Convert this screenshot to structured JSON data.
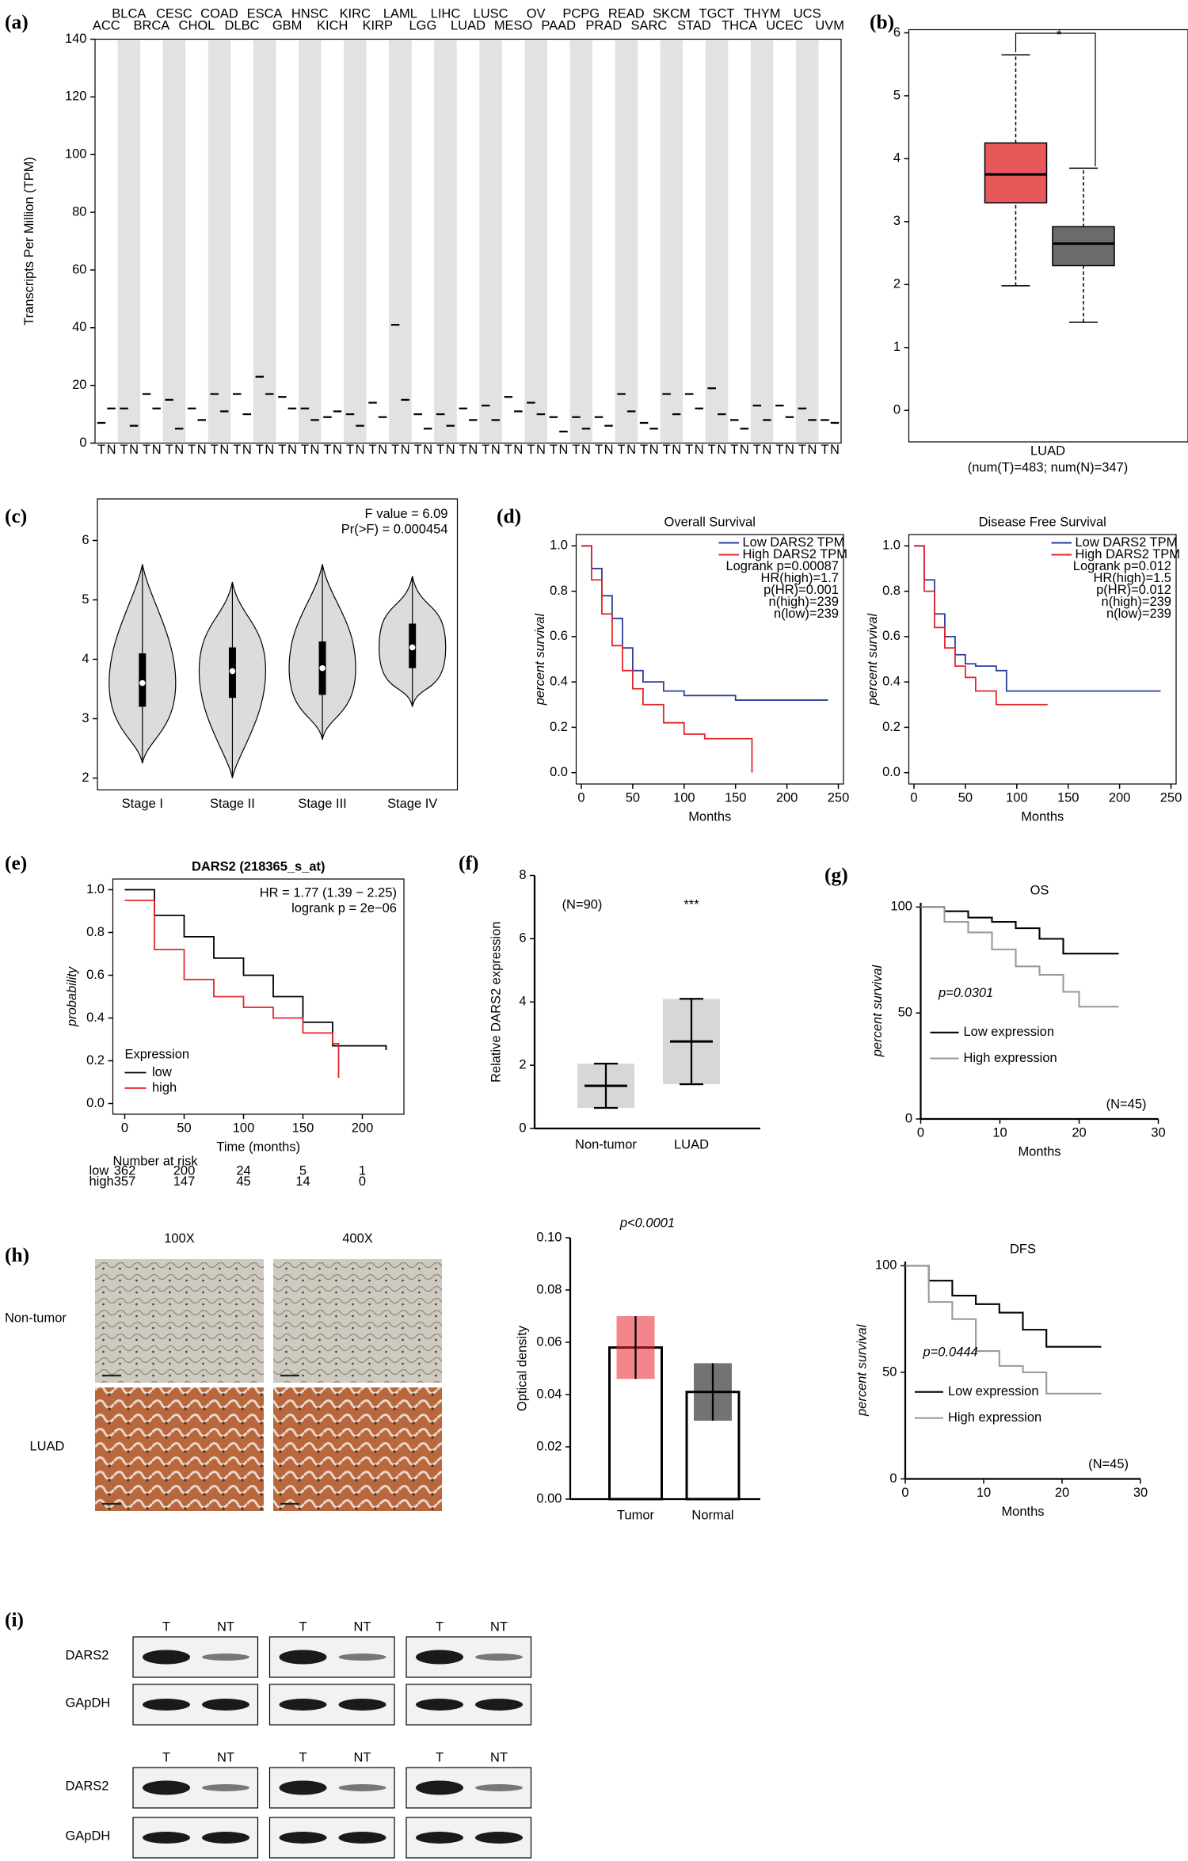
{
  "panel_labels": [
    "(a)",
    "(b)",
    "(c)",
    "(d)",
    "(e)",
    "(f)",
    "(g)",
    "(h)",
    "(i)"
  ],
  "chart_data": [
    {
      "type": "dot",
      "ylabel": "Transcripts Per Million (TPM)",
      "categories": [
        "ACC",
        "BLCA",
        "BRCA",
        "CESC",
        "CHOL",
        "COAD",
        "DLBC",
        "ESCA",
        "GBM",
        "HNSC",
        "KICH",
        "KIRC",
        "KIRP",
        "LAML",
        "LGG",
        "LIHC",
        "LUAD",
        "LUSC",
        "MESO",
        "OV",
        "PAAD",
        "PCPG",
        "PRAD",
        "READ",
        "SARC",
        "SKCM",
        "STAD",
        "TGCT",
        "THCA",
        "THYM",
        "UCEC",
        "UCS",
        "UVM"
      ],
      "category_colors": [
        "#000000",
        "#000000",
        "#e8474a",
        "#e8474a",
        "#000000",
        "#e8474a",
        "#e8474a",
        "#e8474a",
        "#e8474a",
        "#000000",
        "#000000",
        "#000000",
        "#000000",
        "#2e9e3e",
        "#e8474a",
        "#e8474a",
        "#e8474a",
        "#e8474a",
        "#000000",
        "#e8474a",
        "#e8474a",
        "#000000",
        "#000000",
        "#e8474a",
        "#000000",
        "#e8474a",
        "#e8474a",
        "#e8474a",
        "#000000",
        "#e8474a",
        "#e8474a",
        "#e8474a",
        "#000000"
      ],
      "series": [
        {
          "name": "T",
          "color": "#000000",
          "values": [
            7,
            12,
            17,
            15,
            12,
            17,
            17,
            23,
            16,
            12,
            9,
            10,
            14,
            41,
            10,
            10,
            12,
            13,
            16,
            14,
            9,
            9,
            9,
            17,
            7,
            17,
            17,
            19,
            8,
            13,
            13,
            12,
            8
          ]
        },
        {
          "name": "N",
          "color": "#000000",
          "values": [
            12,
            6,
            12,
            5,
            8,
            11,
            10,
            17,
            12,
            8,
            11,
            6,
            9,
            15,
            5,
            6,
            8,
            8,
            11,
            10,
            4,
            5,
            6,
            11,
            5,
            10,
            12,
            10,
            5,
            8,
            9,
            8,
            7
          ]
        }
      ],
      "ylim": [
        0,
        140
      ],
      "yticks": [
        0,
        20,
        40,
        60,
        80,
        100,
        120,
        140
      ]
    },
    {
      "type": "box",
      "xlabel": "LUAD",
      "subtitle": "(num(T)=483; num(N)=347)",
      "annotation": "*",
      "series": [
        {
          "color": "#e8575a",
          "whisker_low": 1.98,
          "q1": 3.3,
          "median": 3.75,
          "q3": 4.25,
          "whisker_high": 5.65
        },
        {
          "color": "#6b6b6b",
          "whisker_low": 1.4,
          "q1": 2.3,
          "median": 2.65,
          "q3": 2.92,
          "whisker_high": 3.85
        }
      ],
      "ylim": [
        -0.5,
        6.05
      ],
      "yticks": [
        0,
        1,
        2,
        3,
        4,
        5,
        6
      ]
    },
    {
      "type": "violin",
      "annotations": [
        "F value = 6.09",
        "Pr(>F) = 0.000454"
      ],
      "categories": [
        "Stage I",
        "Stage II",
        "Stage III",
        "Stage IV"
      ],
      "series": [
        {
          "min": 2.25,
          "q1": 3.2,
          "median": 3.6,
          "q3": 4.1,
          "max": 5.6
        },
        {
          "min": 2.0,
          "q1": 3.35,
          "median": 3.8,
          "q3": 4.2,
          "max": 5.3
        },
        {
          "min": 2.65,
          "q1": 3.4,
          "median": 3.85,
          "q3": 4.3,
          "max": 5.6
        },
        {
          "min": 3.2,
          "q1": 3.85,
          "median": 4.2,
          "q3": 4.6,
          "max": 5.4
        }
      ],
      "ylim": [
        1.8,
        6.7
      ],
      "yticks": [
        2,
        3,
        4,
        5,
        6
      ]
    },
    {
      "type": "km",
      "title": "Overall Survival",
      "xlabel": "Months",
      "ylabel": "percent survival",
      "annotations": [
        "Logrank p=0.00087",
        "HR(high)=1.7",
        "p(HR)=0.001",
        "n(high)=239",
        "n(low)=239"
      ],
      "series": [
        {
          "name": "Low DARS2 TPM",
          "color": "#2b3d9e",
          "x": [
            0,
            10,
            20,
            30,
            40,
            50,
            60,
            80,
            100,
            150,
            240
          ],
          "values": [
            1,
            0.9,
            0.78,
            0.68,
            0.55,
            0.45,
            0.4,
            0.36,
            0.34,
            0.32,
            0.32
          ]
        },
        {
          "name": "High DARS2 TPM",
          "color": "#e3262a",
          "x": [
            0,
            10,
            20,
            30,
            40,
            50,
            60,
            80,
            100,
            120,
            165,
            166
          ],
          "values": [
            1,
            0.85,
            0.7,
            0.56,
            0.45,
            0.37,
            0.3,
            0.22,
            0.17,
            0.15,
            0.15,
            0
          ]
        }
      ],
      "xlim": [
        -5,
        255
      ],
      "xticks": [
        0,
        50,
        100,
        150,
        200,
        250
      ],
      "ylim": [
        -0.05,
        1.05
      ],
      "yticks": [
        {
          "value": 0,
          "label": "0.0"
        },
        {
          "value": 0.2,
          "label": "0.2"
        },
        {
          "value": 0.4,
          "label": "0.4"
        },
        {
          "value": 0.6,
          "label": "0.6"
        },
        {
          "value": 0.8,
          "label": "0.8"
        },
        {
          "value": 1,
          "label": "1.0"
        }
      ]
    },
    {
      "type": "km",
      "title": "Disease Free Survival",
      "xlabel": "Months",
      "ylabel": "percent survival",
      "annotations": [
        "Logrank p=0.012",
        "HR(high)=1.5",
        "p(HR)=0.012",
        "n(high)=239",
        "n(low)=239"
      ],
      "series": [
        {
          "name": "Low DARS2 TPM",
          "color": "#2b3d9e",
          "x": [
            0,
            10,
            20,
            30,
            40,
            50,
            60,
            80,
            90,
            240
          ],
          "values": [
            1,
            0.85,
            0.7,
            0.6,
            0.52,
            0.48,
            0.47,
            0.45,
            0.36,
            0.36
          ]
        },
        {
          "name": "High DARS2 TPM",
          "color": "#e3262a",
          "x": [
            0,
            10,
            20,
            30,
            40,
            50,
            60,
            80,
            130
          ],
          "values": [
            1,
            0.8,
            0.64,
            0.55,
            0.47,
            0.42,
            0.36,
            0.3,
            0.3
          ]
        }
      ],
      "xlim": [
        -5,
        255
      ],
      "xticks": [
        0,
        50,
        100,
        150,
        200,
        250
      ],
      "ylim": [
        -0.05,
        1.05
      ],
      "yticks": [
        {
          "value": 0,
          "label": "0.0"
        },
        {
          "value": 0.2,
          "label": "0.2"
        },
        {
          "value": 0.4,
          "label": "0.4"
        },
        {
          "value": 0.6,
          "label": "0.6"
        },
        {
          "value": 0.8,
          "label": "0.8"
        },
        {
          "value": 1,
          "label": "1.0"
        }
      ]
    },
    {
      "type": "km",
      "title": "DARS2 (218365_s_at)",
      "xlabel": "Time (months)",
      "ylabel": "probability",
      "annotations": [
        "HR = 1.77 (1.39 − 2.25)",
        "logrank p = 2e−06"
      ],
      "legend_title": "Expression",
      "series": [
        {
          "name": "low",
          "color": "#000000",
          "x": [
            0,
            25,
            50,
            75,
            100,
            125,
            150,
            175,
            220
          ],
          "values": [
            1,
            0.88,
            0.78,
            0.68,
            0.6,
            0.5,
            0.38,
            0.27,
            0.25
          ]
        },
        {
          "name": "high",
          "color": "#e3262a",
          "x": [
            0,
            25,
            50,
            75,
            100,
            125,
            150,
            175,
            180
          ],
          "values": [
            0.95,
            0.72,
            0.58,
            0.5,
            0.45,
            0.4,
            0.33,
            0.28,
            0.12
          ]
        }
      ],
      "risk_table": {
        "title": "Number at risk",
        "rows": [
          {
            "name": "low",
            "values": [
              362,
              200,
              24,
              5,
              1
            ]
          },
          {
            "name": "high",
            "values": [
              357,
              147,
              45,
              14,
              0
            ]
          }
        ]
      },
      "xlim": [
        -10,
        235
      ],
      "xticks": [
        0,
        50,
        100,
        150,
        200
      ],
      "ylim": [
        -0.05,
        1.05
      ],
      "yticks": [
        {
          "value": 0,
          "label": "0.0"
        },
        {
          "value": 0.2,
          "label": "0.2"
        },
        {
          "value": 0.4,
          "label": "0.4"
        },
        {
          "value": 0.6,
          "label": "0.6"
        },
        {
          "value": 0.8,
          "label": "0.8"
        },
        {
          "value": 1,
          "label": "1.0"
        }
      ]
    },
    {
      "type": "meansd",
      "ylabel": "Relative DARS2 expression",
      "annotations": [
        "(N=90)",
        "***"
      ],
      "categories": [
        "Non-tumor",
        "LUAD"
      ],
      "values": [
        1.35,
        2.75
      ],
      "errors": [
        0.7,
        1.35
      ],
      "colors": [
        "#8c8c8c",
        "#8c8c8c"
      ],
      "ylim": [
        0,
        8
      ],
      "yticks": [
        0,
        2,
        4,
        6,
        8
      ]
    },
    {
      "type": "km",
      "title": "OS",
      "xlabel": "Months",
      "ylabel": "percent survival",
      "annotations": [
        "p=0.0301",
        "(N=45)"
      ],
      "series": [
        {
          "name": "Low expression",
          "color": "#000000",
          "x": [
            0,
            3,
            6,
            9,
            12,
            15,
            18,
            25
          ],
          "values": [
            100,
            98,
            95,
            93,
            90,
            85,
            78,
            78
          ]
        },
        {
          "name": "High expression",
          "color": "#9a9a9a",
          "x": [
            0,
            3,
            6,
            9,
            12,
            15,
            18,
            20,
            25
          ],
          "values": [
            100,
            93,
            88,
            80,
            72,
            68,
            60,
            53,
            53
          ]
        }
      ],
      "xlim": [
        0,
        30
      ],
      "xticks": [
        0,
        10,
        20,
        30
      ],
      "ylim": [
        0,
        102
      ],
      "yticks": [
        0,
        50,
        100
      ]
    },
    {
      "type": "bar",
      "ylabel": "Optical density",
      "annotations": [
        "p<0.0001"
      ],
      "categories": [
        "Tumor",
        "Normal"
      ],
      "values": [
        0.058,
        0.041
      ],
      "errors": [
        0.012,
        0.011
      ],
      "colors": [
        "#e8232a",
        "#000000"
      ],
      "ylim": [
        0,
        0.1
      ],
      "yticks": [
        {
          "value": 0,
          "label": "0.00"
        },
        {
          "value": 0.02,
          "label": "0.02"
        },
        {
          "value": 0.04,
          "label": "0.04"
        },
        {
          "value": 0.06,
          "label": "0.06"
        },
        {
          "value": 0.08,
          "label": "0.08"
        },
        {
          "value": 0.1,
          "label": "0.10"
        }
      ]
    },
    {
      "type": "km",
      "title": "DFS",
      "xlabel": "Months",
      "ylabel": "percent survival",
      "annotations": [
        "p=0.0444",
        "(N=45)"
      ],
      "series": [
        {
          "name": "Low expression",
          "color": "#000000",
          "x": [
            0,
            3,
            6,
            9,
            12,
            15,
            18,
            25
          ],
          "values": [
            100,
            93,
            86,
            82,
            78,
            70,
            62,
            62
          ]
        },
        {
          "name": "High expression",
          "color": "#9a9a9a",
          "x": [
            0,
            3,
            6,
            9,
            12,
            15,
            18,
            25
          ],
          "values": [
            100,
            83,
            75,
            60,
            53,
            50,
            40,
            40
          ]
        }
      ],
      "xlim": [
        0,
        30
      ],
      "xticks": [
        0,
        10,
        20,
        30
      ],
      "ylim": [
        0,
        102
      ],
      "yticks": [
        0,
        50,
        100
      ]
    }
  ],
  "ihc": {
    "columns": [
      "100X",
      "400X"
    ],
    "rows": [
      "Non-tumor",
      "LUAD"
    ]
  },
  "blots": [
    {
      "lanes": [
        "T",
        "NT",
        "T",
        "NT",
        "T",
        "NT"
      ],
      "proteins": [
        "DARS2",
        "GApDH"
      ]
    },
    {
      "lanes": [
        "T",
        "NT",
        "T",
        "NT",
        "T",
        "NT"
      ],
      "proteins": [
        "DARS2",
        "GApDH"
      ]
    }
  ]
}
